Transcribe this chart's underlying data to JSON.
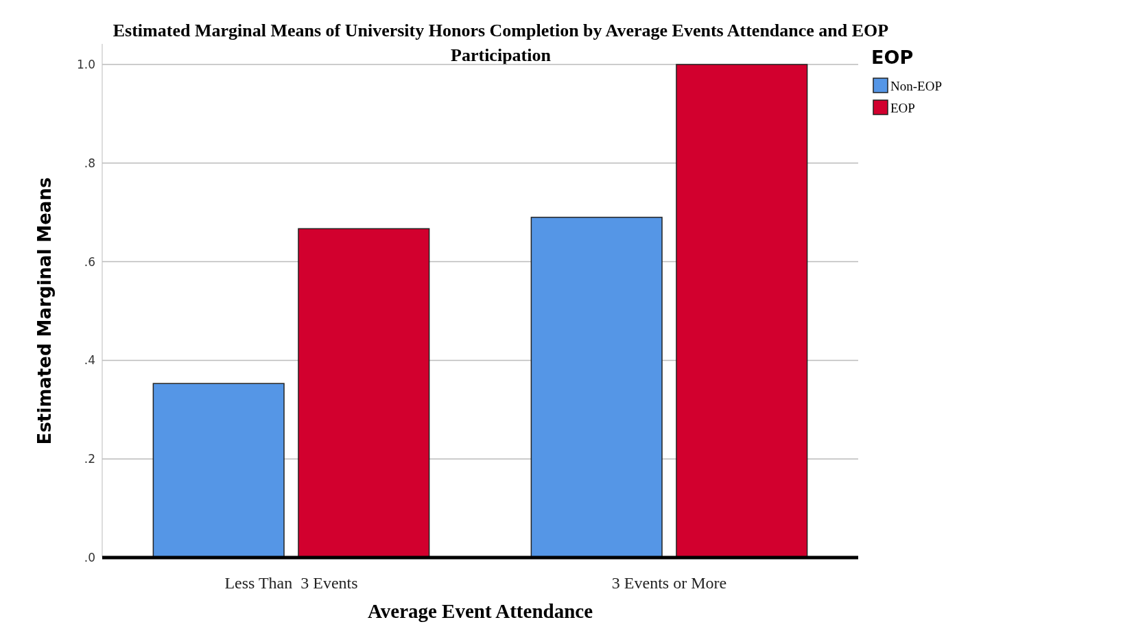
{
  "chart_data": {
    "type": "bar",
    "title": "Estimated Marginal Means of University Honors Completion by Average Events Attendance and EOP Participation",
    "xlabel": "Average Event Attendance",
    "ylabel": "Estimated Marginal Means",
    "legend_title": "EOP",
    "categories": [
      "Less Than  3 Events",
      "3 Events or More"
    ],
    "series": [
      {
        "name": "Non-EOP",
        "color": "#5596e6",
        "values": [
          0.353,
          0.69
        ]
      },
      {
        "name": "EOP",
        "color": "#d2002e",
        "values": [
          0.667,
          1.0
        ]
      }
    ],
    "ylim": [
      0,
      1.0
    ],
    "yticks": [
      {
        "value": 0,
        "label": ".0"
      },
      {
        "value": 0.2,
        "label": ".2"
      },
      {
        "value": 0.4,
        "label": ".4"
      },
      {
        "value": 0.6,
        "label": ".6"
      },
      {
        "value": 0.8,
        "label": ".8"
      },
      {
        "value": 1.0,
        "label": "1.0"
      }
    ],
    "grid": "y",
    "legend": "top right"
  }
}
